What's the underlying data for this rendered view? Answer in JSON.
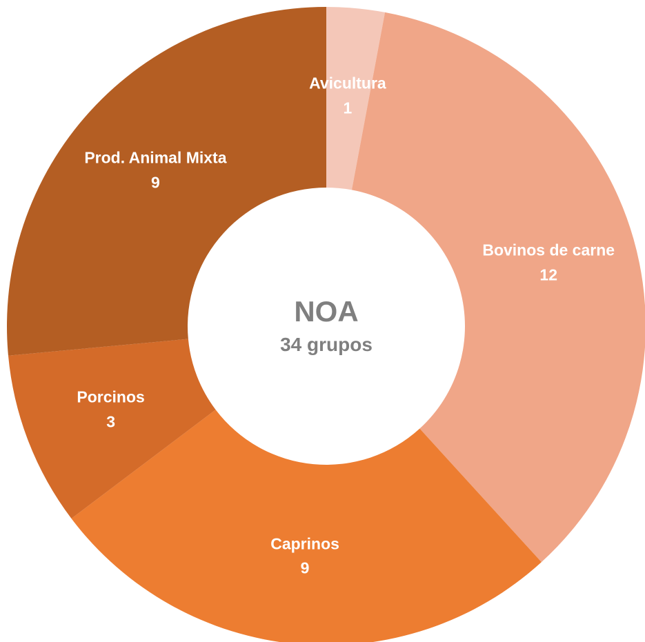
{
  "chart_data": {
    "type": "donut",
    "center_title": "NOA",
    "center_subtitle": "34 grupos",
    "categories": [
      "Avicultura",
      "Bovinos de carne",
      "Caprinos",
      "Porcinos",
      "Prod. Animal Mixta"
    ],
    "values": [
      1,
      12,
      9,
      3,
      9
    ],
    "colors": [
      "#f4c7b8",
      "#f0a688",
      "#ed7d31",
      "#d46b29",
      "#b45e23"
    ]
  }
}
